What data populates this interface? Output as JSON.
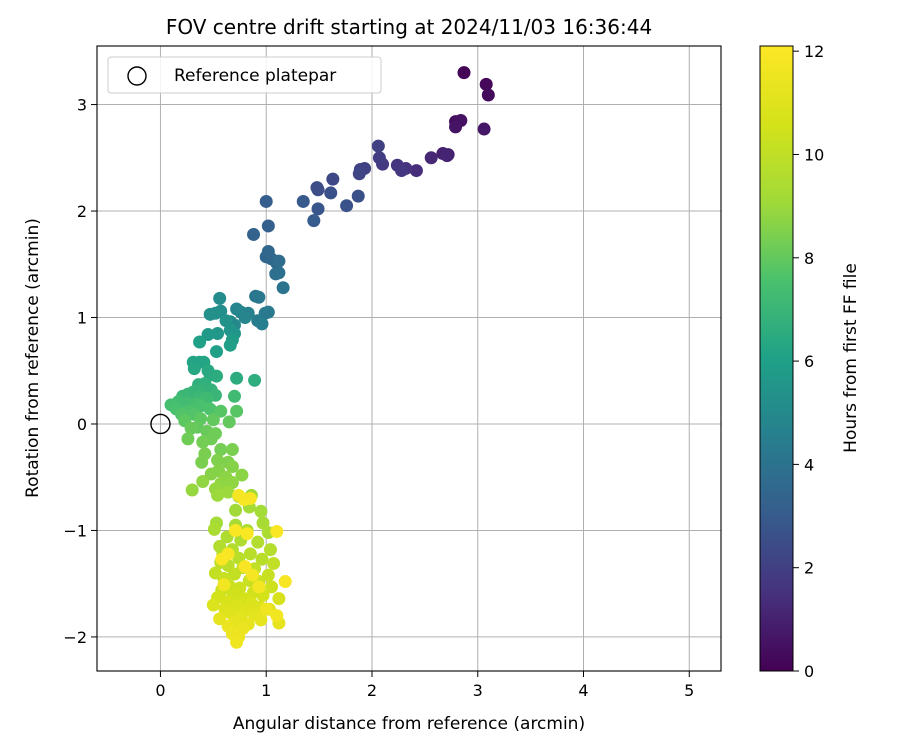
{
  "chart_data": {
    "type": "scatter",
    "title": "FOV centre drift starting at 2024/11/03 16:36:44",
    "xlabel": "Angular distance from reference (arcmin)",
    "ylabel": "Rotation from reference (arcmin)",
    "xlim": [
      -0.6,
      5.3
    ],
    "ylim": [
      -2.32,
      3.55
    ],
    "x_ticks": [
      0,
      1,
      2,
      3,
      4,
      5
    ],
    "y_ticks": [
      -2,
      -1,
      0,
      1,
      2,
      3
    ],
    "grid": true,
    "legend": {
      "placement": "top-left",
      "entries": [
        "Reference platepar"
      ]
    },
    "reference_point": {
      "x": 0.0,
      "y": 0.0
    },
    "colorbar": {
      "label": "Hours from first FF file",
      "min": 0,
      "max": 12.1,
      "ticks": [
        0,
        2,
        4,
        6,
        8,
        10,
        12
      ],
      "colormap": "viridis"
    },
    "series": [
      {
        "points": [
          [
            2.87,
            3.3,
            0.1
          ],
          [
            3.08,
            3.19,
            0.2
          ],
          [
            3.1,
            3.09,
            0.3
          ],
          [
            2.79,
            2.84,
            0.4
          ],
          [
            2.84,
            2.85,
            0.5
          ],
          [
            2.79,
            2.79,
            0.6
          ],
          [
            3.06,
            2.77,
            0.7
          ],
          [
            2.72,
            2.53,
            0.9
          ],
          [
            2.67,
            2.54,
            1.0
          ],
          [
            2.71,
            2.52,
            1.1
          ],
          [
            2.56,
            2.5,
            1.2
          ],
          [
            2.42,
            2.38,
            1.4
          ],
          [
            2.32,
            2.4,
            1.5
          ],
          [
            2.24,
            2.43,
            1.6
          ],
          [
            2.28,
            2.38,
            1.7
          ],
          [
            2.1,
            2.44,
            1.8
          ],
          [
            2.07,
            2.5,
            1.9
          ],
          [
            2.06,
            2.61,
            2.0
          ],
          [
            1.93,
            2.4,
            2.1
          ],
          [
            1.89,
            2.39,
            2.1
          ],
          [
            1.88,
            2.35,
            2.2
          ],
          [
            1.63,
            2.3,
            2.3
          ],
          [
            1.48,
            2.22,
            2.4
          ],
          [
            1.49,
            2.2,
            2.5
          ],
          [
            1.61,
            2.17,
            2.6
          ],
          [
            1.87,
            2.14,
            2.6
          ],
          [
            1.76,
            2.05,
            2.7
          ],
          [
            1.49,
            2.02,
            2.8
          ],
          [
            1.35,
            2.09,
            2.9
          ],
          [
            1.45,
            1.91,
            3.0
          ],
          [
            1.0,
            2.09,
            3.1
          ],
          [
            1.02,
            1.86,
            3.2
          ],
          [
            0.88,
            1.78,
            3.3
          ],
          [
            1.0,
            1.57,
            3.4
          ],
          [
            1.05,
            1.55,
            3.5
          ],
          [
            1.02,
            1.62,
            3.5
          ],
          [
            1.1,
            1.51,
            3.6
          ],
          [
            1.12,
            1.53,
            3.7
          ],
          [
            1.09,
            1.41,
            3.8
          ],
          [
            1.12,
            1.42,
            3.9
          ],
          [
            1.16,
            1.28,
            4.0
          ],
          [
            0.9,
            1.2,
            4.1
          ],
          [
            0.93,
            1.19,
            4.2
          ],
          [
            0.99,
            1.04,
            4.3
          ],
          [
            1.02,
            1.05,
            4.3
          ],
          [
            0.92,
            0.97,
            4.4
          ],
          [
            0.96,
            0.94,
            4.5
          ],
          [
            0.83,
            1.04,
            4.6
          ],
          [
            0.76,
            1.05,
            4.7
          ],
          [
            0.72,
            1.08,
            4.8
          ],
          [
            0.8,
            1.0,
            4.8
          ],
          [
            0.66,
            0.96,
            4.9
          ],
          [
            0.7,
            0.93,
            5.0
          ],
          [
            0.56,
            1.18,
            5.1
          ],
          [
            0.57,
            1.06,
            5.2
          ],
          [
            0.52,
            1.04,
            5.3
          ],
          [
            0.47,
            1.03,
            5.3
          ],
          [
            0.62,
            0.97,
            5.4
          ],
          [
            0.66,
            0.88,
            5.5
          ],
          [
            0.7,
            0.85,
            5.5
          ],
          [
            0.54,
            0.85,
            5.6
          ],
          [
            0.45,
            0.84,
            5.7
          ],
          [
            0.68,
            0.79,
            5.8
          ],
          [
            0.66,
            0.74,
            5.9
          ],
          [
            0.37,
            0.77,
            6.0
          ],
          [
            0.53,
            0.68,
            6.0
          ],
          [
            0.37,
            0.58,
            6.1
          ],
          [
            0.31,
            0.58,
            6.2
          ],
          [
            0.41,
            0.58,
            6.2
          ],
          [
            0.32,
            0.52,
            6.3
          ],
          [
            0.45,
            0.5,
            6.4
          ],
          [
            0.47,
            0.46,
            6.4
          ],
          [
            0.53,
            0.45,
            6.5
          ],
          [
            0.72,
            0.43,
            6.5
          ],
          [
            0.89,
            0.41,
            6.6
          ],
          [
            0.42,
            0.38,
            6.7
          ],
          [
            0.36,
            0.37,
            6.7
          ],
          [
            0.44,
            0.33,
            6.8
          ],
          [
            0.48,
            0.32,
            6.8
          ],
          [
            0.38,
            0.31,
            6.9
          ],
          [
            0.31,
            0.3,
            6.9
          ],
          [
            0.26,
            0.28,
            7.0
          ],
          [
            0.52,
            0.27,
            7.0
          ],
          [
            0.21,
            0.26,
            7.1
          ],
          [
            0.36,
            0.25,
            7.1
          ],
          [
            0.44,
            0.24,
            7.2
          ],
          [
            0.7,
            0.26,
            7.2
          ],
          [
            0.17,
            0.21,
            7.3
          ],
          [
            0.25,
            0.2,
            7.3
          ],
          [
            0.34,
            0.19,
            7.4
          ],
          [
            0.1,
            0.18,
            7.4
          ],
          [
            0.38,
            0.17,
            7.5
          ],
          [
            0.15,
            0.14,
            7.5
          ],
          [
            0.27,
            0.12,
            7.6
          ],
          [
            0.47,
            0.14,
            7.6
          ],
          [
            0.2,
            0.09,
            7.7
          ],
          [
            0.32,
            0.09,
            7.7
          ],
          [
            0.57,
            0.12,
            7.8
          ],
          [
            0.72,
            0.12,
            7.8
          ],
          [
            0.38,
            0.05,
            7.9
          ],
          [
            0.23,
            0.03,
            7.9
          ],
          [
            0.5,
            0.04,
            8.0
          ],
          [
            0.65,
            0.02,
            8.0
          ],
          [
            0.35,
            -0.03,
            8.0
          ],
          [
            0.29,
            -0.04,
            8.1
          ],
          [
            0.44,
            -0.07,
            8.1
          ],
          [
            0.52,
            -0.09,
            8.2
          ],
          [
            0.26,
            -0.14,
            8.2
          ],
          [
            0.48,
            -0.14,
            8.2
          ],
          [
            0.4,
            -0.17,
            8.3
          ],
          [
            0.57,
            -0.24,
            8.3
          ],
          [
            0.68,
            -0.24,
            8.4
          ],
          [
            0.42,
            -0.28,
            8.4
          ],
          [
            0.39,
            -0.36,
            8.4
          ],
          [
            0.54,
            -0.34,
            8.5
          ],
          [
            0.64,
            -0.36,
            8.5
          ],
          [
            0.68,
            -0.4,
            8.6
          ],
          [
            0.55,
            -0.44,
            8.6
          ],
          [
            0.48,
            -0.47,
            8.6
          ],
          [
            0.77,
            -0.48,
            8.7
          ],
          [
            0.62,
            -0.5,
            8.7
          ],
          [
            0.4,
            -0.54,
            8.8
          ],
          [
            0.68,
            -0.55,
            8.8
          ],
          [
            0.57,
            -0.56,
            8.8
          ],
          [
            0.3,
            -0.62,
            8.9
          ],
          [
            0.52,
            -0.61,
            8.9
          ],
          [
            0.64,
            -0.64,
            9.0
          ],
          [
            0.54,
            -0.67,
            9.0
          ],
          [
            0.74,
            -0.68,
            9.0
          ],
          [
            0.86,
            -0.67,
            9.1
          ],
          [
            0.71,
            -0.81,
            9.1
          ],
          [
            0.84,
            -0.78,
            9.2
          ],
          [
            0.95,
            -0.82,
            9.2
          ],
          [
            0.53,
            -0.93,
            9.2
          ],
          [
            0.71,
            -0.95,
            9.3
          ],
          [
            0.97,
            -0.93,
            9.3
          ],
          [
            0.51,
            -0.99,
            9.4
          ],
          [
            0.82,
            -1.0,
            9.4
          ],
          [
            1.02,
            -1.02,
            9.4
          ],
          [
            0.63,
            -1.06,
            9.5
          ],
          [
            0.76,
            -1.09,
            9.5
          ],
          [
            0.92,
            -1.11,
            9.6
          ],
          [
            0.56,
            -1.15,
            9.6
          ],
          [
            0.68,
            -1.18,
            9.6
          ],
          [
            1.04,
            -1.18,
            9.7
          ],
          [
            0.59,
            -1.22,
            9.7
          ],
          [
            0.85,
            -1.22,
            9.8
          ],
          [
            0.74,
            -1.26,
            9.8
          ],
          [
            0.96,
            -1.27,
            9.8
          ],
          [
            0.57,
            -1.3,
            9.9
          ],
          [
            0.64,
            -1.33,
            9.9
          ],
          [
            1.07,
            -1.31,
            10.0
          ],
          [
            0.78,
            -1.35,
            10.0
          ],
          [
            0.89,
            -1.36,
            10.0
          ],
          [
            0.52,
            -1.4,
            10.1
          ],
          [
            0.7,
            -1.41,
            10.1
          ],
          [
            1.02,
            -1.42,
            10.2
          ],
          [
            0.6,
            -1.45,
            10.2
          ],
          [
            0.84,
            -1.47,
            10.2
          ],
          [
            0.93,
            -1.48,
            10.3
          ],
          [
            0.65,
            -1.52,
            10.3
          ],
          [
            0.75,
            -1.54,
            10.4
          ],
          [
            1.05,
            -1.53,
            10.4
          ],
          [
            0.58,
            -1.56,
            10.4
          ],
          [
            0.88,
            -1.58,
            10.5
          ],
          [
            0.69,
            -1.6,
            10.5
          ],
          [
            0.97,
            -1.61,
            10.6
          ],
          [
            0.54,
            -1.63,
            10.6
          ],
          [
            0.79,
            -1.64,
            10.6
          ],
          [
            1.12,
            -1.64,
            10.7
          ],
          [
            0.63,
            -1.67,
            10.7
          ],
          [
            0.86,
            -1.68,
            10.8
          ],
          [
            0.5,
            -1.7,
            10.8
          ],
          [
            0.73,
            -1.71,
            10.8
          ],
          [
            0.94,
            -1.72,
            10.9
          ],
          [
            0.61,
            -1.74,
            10.9
          ],
          [
            0.82,
            -1.75,
            11.0
          ],
          [
            1.03,
            -1.74,
            11.0
          ],
          [
            0.67,
            -1.78,
            11.0
          ],
          [
            0.89,
            -1.79,
            11.1
          ],
          [
            0.76,
            -1.81,
            11.1
          ],
          [
            0.56,
            -1.83,
            11.2
          ],
          [
            0.95,
            -1.84,
            11.2
          ],
          [
            0.7,
            -1.86,
            11.2
          ],
          [
            0.83,
            -1.88,
            11.3
          ],
          [
            1.12,
            -1.87,
            11.3
          ],
          [
            0.64,
            -1.9,
            11.4
          ],
          [
            0.78,
            -1.92,
            11.4
          ],
          [
            0.68,
            -1.97,
            11.5
          ],
          [
            0.74,
            -2.0,
            11.5
          ],
          [
            0.72,
            -2.05,
            11.6
          ],
          [
            1.0,
            -1.74,
            11.6
          ],
          [
            1.1,
            -1.8,
            11.7
          ],
          [
            0.6,
            -1.51,
            11.7
          ],
          [
            0.87,
            -1.42,
            11.8
          ],
          [
            0.93,
            -1.53,
            11.8
          ],
          [
            1.18,
            -1.48,
            11.9
          ],
          [
            0.8,
            -1.34,
            11.9
          ],
          [
            0.64,
            -1.22,
            11.9
          ],
          [
            0.58,
            -1.27,
            12.0
          ],
          [
            0.82,
            -1.03,
            12.0
          ],
          [
            0.71,
            -1.0,
            12.0
          ],
          [
            1.1,
            -1.01,
            12.0
          ],
          [
            0.79,
            -0.71,
            12.0
          ],
          [
            0.85,
            -0.7,
            11.9
          ],
          [
            0.74,
            -0.67,
            11.8
          ]
        ]
      }
    ]
  }
}
